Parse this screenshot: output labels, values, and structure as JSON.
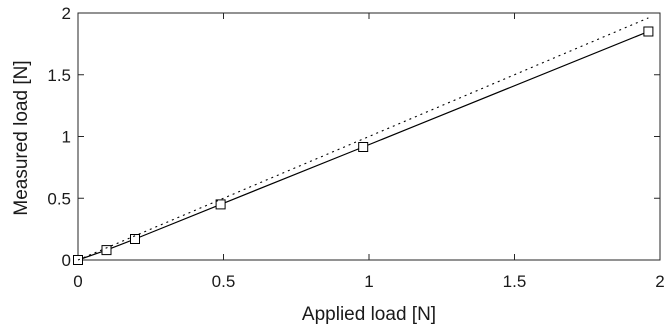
{
  "chart_data": {
    "type": "line",
    "xlabel": "Applied load [N]",
    "ylabel": "Measured load [N]",
    "xlim": [
      0,
      2
    ],
    "ylim": [
      0,
      2
    ],
    "xticks": [
      0,
      0.5,
      1,
      1.5,
      2
    ],
    "yticks": [
      0,
      0.5,
      1,
      1.5,
      2
    ],
    "xtick_labels": [
      "0",
      "0.5",
      "1",
      "1.5",
      "2"
    ],
    "ytick_labels": [
      "0",
      "0.5",
      "1",
      "1.5",
      "2"
    ],
    "grid": false,
    "legend": "none",
    "series": [
      {
        "style": "solid-line-square-markers",
        "color": "#000000",
        "x": [
          0,
          0.098,
          0.196,
          0.49,
          0.98,
          1.96
        ],
        "y": [
          0,
          0.08,
          0.17,
          0.45,
          0.915,
          1.85
        ]
      },
      {
        "style": "dotted-reference-line",
        "color": "#000000",
        "x": [
          0,
          1.96
        ],
        "y": [
          0,
          1.96
        ]
      }
    ]
  }
}
